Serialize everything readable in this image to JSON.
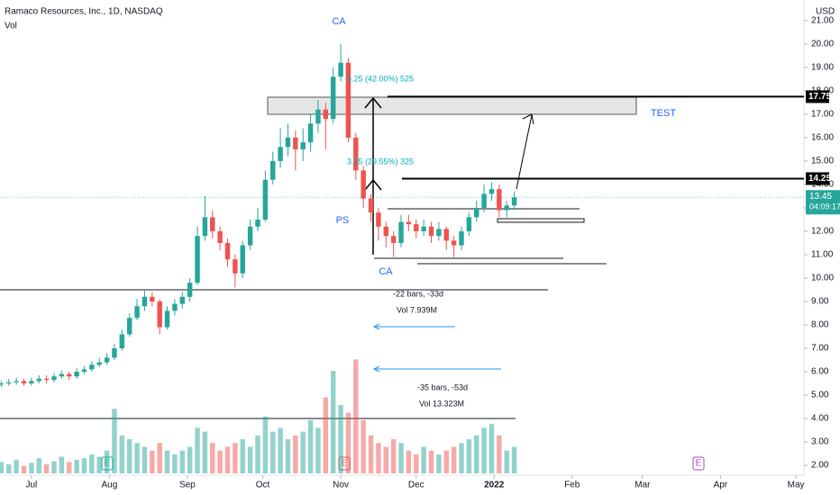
{
  "header": {
    "symbol": "Ramaco Resources, Inc., 1D, NASDAQ",
    "indicator": "Vol",
    "currency": "USD",
    "earnings": [
      "E",
      "E",
      "E"
    ]
  },
  "chart_data": {
    "type": "candlestick",
    "x": [
      -12,
      -9,
      -6,
      -3,
      0,
      3,
      6,
      9,
      12,
      15,
      18,
      21,
      24,
      27,
      30,
      33,
      36,
      39,
      42,
      45,
      48,
      51,
      54,
      57,
      60,
      63,
      66,
      69,
      72,
      75,
      78,
      81,
      84,
      87,
      90,
      93,
      96,
      99,
      102,
      105,
      108,
      111,
      114,
      117,
      120,
      123,
      126,
      129,
      132,
      135,
      138,
      141,
      144,
      147,
      150,
      153,
      156,
      159,
      162,
      165,
      168,
      171,
      174,
      177,
      180,
      183,
      186,
      189,
      192
    ],
    "open": [
      5.45,
      5.5,
      5.55,
      5.6,
      5.5,
      5.6,
      5.7,
      5.65,
      5.8,
      5.9,
      5.8,
      6.0,
      6.1,
      6.3,
      6.4,
      6.6,
      7.0,
      7.6,
      8.3,
      8.8,
      9.2,
      9.0,
      7.9,
      8.6,
      8.9,
      9.2,
      9.8,
      11.8,
      12.6,
      12.0,
      11.5,
      10.8,
      10.2,
      11.4,
      12.2,
      12.5,
      14.2,
      15.0,
      15.6,
      16.0,
      15.5,
      15.8,
      16.6,
      17.2,
      16.8,
      18.6,
      19.2,
      16.0,
      14.6,
      13.4,
      12.8,
      12.2,
      11.8,
      11.5,
      12.4,
      12.3,
      12.0,
      12.2,
      11.8,
      12.1,
      11.6,
      11.4,
      12.0,
      12.6,
      13.0,
      13.6,
      13.8,
      12.9,
      13.1
    ],
    "high": [
      5.6,
      5.7,
      5.75,
      5.7,
      5.75,
      5.85,
      5.85,
      5.95,
      6.05,
      6.0,
      6.15,
      6.25,
      6.45,
      6.6,
      6.8,
      7.2,
      7.8,
      8.5,
      9.1,
      9.5,
      9.4,
      9.1,
      8.8,
      9.1,
      9.4,
      10.0,
      12.2,
      13.5,
      12.9,
      12.2,
      11.7,
      11.0,
      11.6,
      12.5,
      13.0,
      14.6,
      15.4,
      16.4,
      16.6,
      16.3,
      16.4,
      17.0,
      17.6,
      17.5,
      19.0,
      20.0,
      19.4,
      16.2,
      14.8,
      13.6,
      13.0,
      12.4,
      12.0,
      12.7,
      12.7,
      12.5,
      12.5,
      12.4,
      12.4,
      12.2,
      11.8,
      12.2,
      12.8,
      13.3,
      14.0,
      14.1,
      14.0,
      13.3,
      13.7
    ],
    "low": [
      5.35,
      5.4,
      5.45,
      5.4,
      5.4,
      5.5,
      5.5,
      5.55,
      5.7,
      5.65,
      5.7,
      5.9,
      6.0,
      6.2,
      6.3,
      6.5,
      6.9,
      7.5,
      8.2,
      8.6,
      8.8,
      7.6,
      7.8,
      8.4,
      8.7,
      9.0,
      9.7,
      11.6,
      11.7,
      11.2,
      10.5,
      9.6,
      10.0,
      11.2,
      12.0,
      12.4,
      14.0,
      14.7,
      15.2,
      14.6,
      15.0,
      15.4,
      16.2,
      15.5,
      16.6,
      18.4,
      15.8,
      14.2,
      13.0,
      12.4,
      11.6,
      11.3,
      10.9,
      11.3,
      12.0,
      11.7,
      11.8,
      11.5,
      11.6,
      11.2,
      10.9,
      11.2,
      11.8,
      12.4,
      12.8,
      13.3,
      12.6,
      12.6,
      12.9
    ],
    "close": [
      5.5,
      5.55,
      5.6,
      5.5,
      5.6,
      5.7,
      5.65,
      5.8,
      5.9,
      5.8,
      6.0,
      6.1,
      6.3,
      6.4,
      6.6,
      7.0,
      7.6,
      8.3,
      8.8,
      9.2,
      9.0,
      7.9,
      8.6,
      8.9,
      9.2,
      9.8,
      11.8,
      12.6,
      12.0,
      11.5,
      10.8,
      10.2,
      11.4,
      12.2,
      12.5,
      14.2,
      15.0,
      15.6,
      16.0,
      15.5,
      15.8,
      16.6,
      17.2,
      16.8,
      18.6,
      19.2,
      16.0,
      14.6,
      13.4,
      12.8,
      12.2,
      11.8,
      11.5,
      12.4,
      12.3,
      12.0,
      12.2,
      11.8,
      12.1,
      11.6,
      11.4,
      12.0,
      12.6,
      13.0,
      13.6,
      13.8,
      12.9,
      13.1,
      13.45
    ],
    "volume": [
      0.15,
      0.12,
      0.18,
      0.1,
      0.14,
      0.2,
      0.12,
      0.16,
      0.22,
      0.15,
      0.18,
      0.2,
      0.25,
      0.22,
      0.3,
      0.85,
      0.5,
      0.45,
      0.4,
      0.35,
      0.3,
      0.4,
      0.3,
      0.25,
      0.3,
      0.35,
      0.6,
      0.55,
      0.4,
      0.3,
      0.35,
      0.4,
      0.45,
      0.35,
      0.5,
      0.75,
      0.55,
      0.6,
      0.45,
      0.5,
      0.55,
      0.7,
      0.6,
      1.0,
      1.35,
      0.9,
      0.8,
      1.5,
      0.7,
      0.5,
      0.4,
      0.35,
      0.45,
      0.4,
      0.3,
      0.25,
      0.35,
      0.3,
      0.25,
      0.3,
      0.35,
      0.4,
      0.45,
      0.5,
      0.6,
      0.65,
      0.5,
      0.3,
      0.35
    ],
    "up_color": "#26a69a",
    "down_color": "#ef5350",
    "xlim": [
      -12.5,
      307.2
    ],
    "xticks": [
      {
        "value": 0,
        "label": "Jul"
      },
      {
        "value": 31,
        "label": "Aug"
      },
      {
        "value": 62,
        "label": "Sep"
      },
      {
        "value": 92,
        "label": "Oct"
      },
      {
        "value": 123,
        "label": "Nov"
      },
      {
        "value": 153,
        "label": "Dec"
      },
      {
        "value": 184,
        "label": "2022"
      },
      {
        "value": 215,
        "label": "Feb"
      },
      {
        "value": 243,
        "label": "Mar"
      },
      {
        "value": 274,
        "label": "Apr"
      },
      {
        "value": 304,
        "label": "May"
      }
    ],
    "ylim": [
      1.58,
      21.88
    ],
    "yticks": [
      {
        "value": 2,
        "label": "2.00"
      },
      {
        "value": 3,
        "label": "3.00"
      },
      {
        "value": 4,
        "label": "4.00"
      },
      {
        "value": 5,
        "label": "5.00"
      },
      {
        "value": 6,
        "label": "6.00"
      },
      {
        "value": 7,
        "label": "7.00"
      },
      {
        "value": 8,
        "label": "8.00"
      },
      {
        "value": 9,
        "label": "9.00"
      },
      {
        "value": 10,
        "label": "10.00"
      },
      {
        "value": 11,
        "label": "11.00"
      },
      {
        "value": 12,
        "label": "12.00"
      },
      {
        "value": 13,
        "label": "13.00"
      },
      {
        "value": 14,
        "label": "14.00"
      },
      {
        "value": 15,
        "label": "15.00"
      },
      {
        "value": 16,
        "label": "16.00"
      },
      {
        "value": 17,
        "label": "17.00"
      },
      {
        "value": 18,
        "label": "18.00"
      },
      {
        "value": 19,
        "label": "19.00"
      },
      {
        "value": 20,
        "label": "20.00"
      },
      {
        "value": 21,
        "label": "21.00"
      }
    ],
    "volume_lim": [
      0,
      1.6
    ],
    "levels": [
      {
        "value": 17.75,
        "label": "17.75"
      },
      {
        "value": 14.25,
        "label": "14.25"
      }
    ],
    "last_price": {
      "value": 13.45,
      "label": "13.45",
      "countdown": "04:09:17"
    },
    "annotations": [
      "CA",
      "PS",
      "CA",
      "TEST"
    ],
    "measures": [
      "5.25 (42.00%) 525",
      "3.25 (29.55%) 325",
      "-22 bars, -33d",
      "Vol 7.939M",
      "-35 bars, -53d",
      "Vol 13.323M"
    ]
  }
}
